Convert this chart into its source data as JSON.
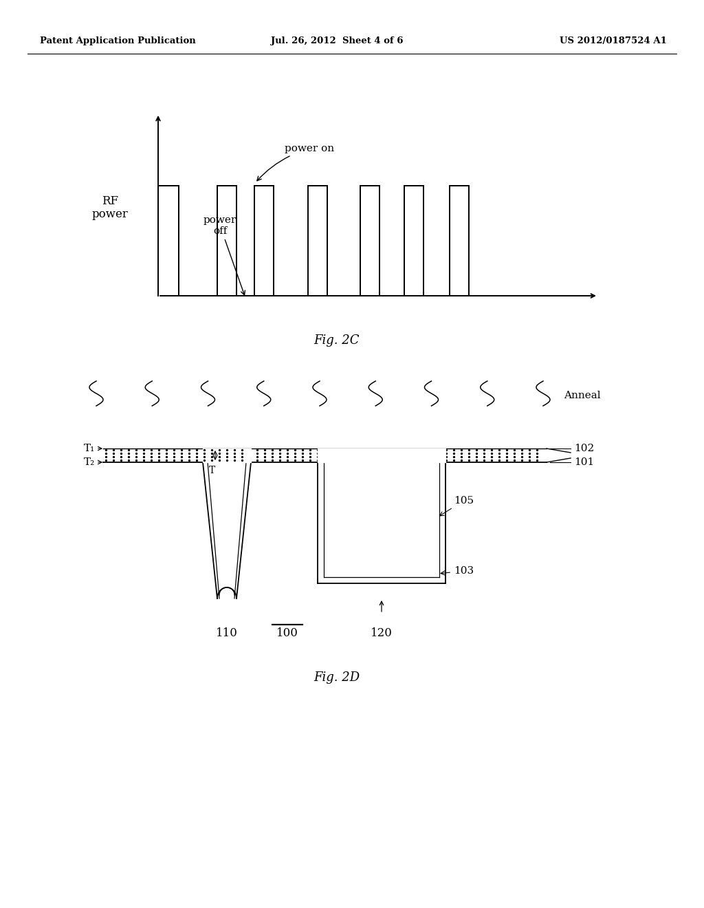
{
  "bg_color": "#ffffff",
  "header_left": "Patent Application Publication",
  "header_center": "Jul. 26, 2012  Sheet 4 of 6",
  "header_right": "US 2012/0187524 A1",
  "fig2c_label": "Fig. 2C",
  "fig2d_label": "Fig. 2D",
  "rf_power_label": "RF\npower",
  "power_on_label": "power on",
  "power_off_label": "power\noff",
  "anneal_label": "Anneal",
  "labels": {
    "T1": "T₁",
    "T2": "T₂",
    "T": "T",
    "100": "100",
    "101": "101",
    "102": "102",
    "103": "103",
    "105": "105",
    "110": "110",
    "120": "120"
  }
}
